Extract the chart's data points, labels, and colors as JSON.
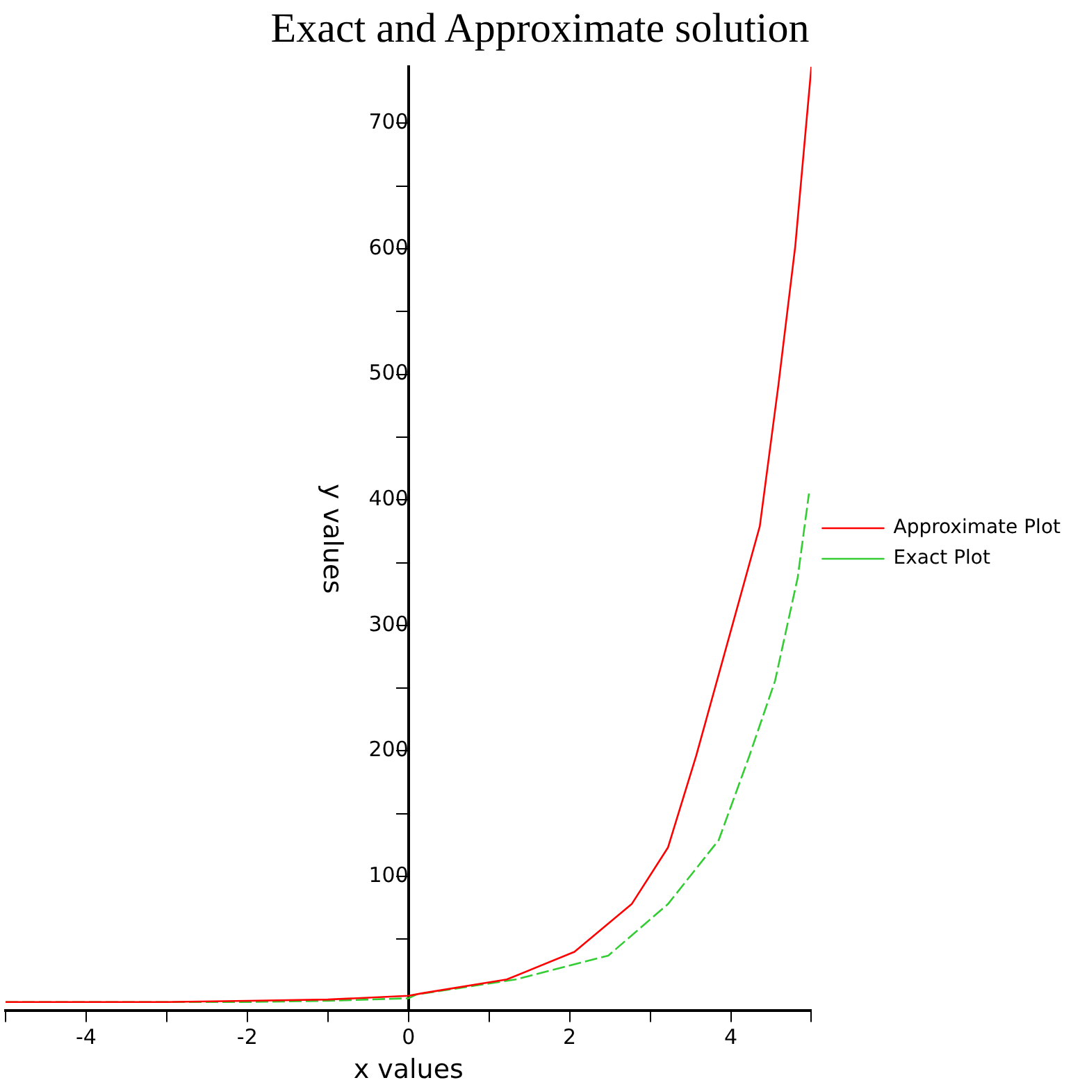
{
  "chart_data": {
    "type": "line",
    "title": "Exact and Approximate solution",
    "xlabel": "x values",
    "ylabel": "y values",
    "xlim": [
      -5,
      5
    ],
    "ylim": [
      -7,
      745
    ],
    "xticks": [
      {
        "value": -5,
        "label": null
      },
      -4,
      {
        "value": -3,
        "label": null
      },
      -2,
      {
        "value": -1,
        "label": null
      },
      0,
      {
        "value": 1,
        "label": null
      },
      2,
      {
        "value": 3,
        "label": null
      },
      4,
      {
        "value": 5,
        "label": null
      }
    ],
    "yticks": [
      {
        "value": 50,
        "label": null
      },
      100,
      {
        "value": 150,
        "label": null
      },
      200,
      {
        "value": 250,
        "label": null
      },
      300,
      {
        "value": 350,
        "label": null
      },
      400,
      {
        "value": 450,
        "label": null
      },
      500,
      {
        "value": 550,
        "label": null
      },
      600,
      {
        "value": 650,
        "label": null
      },
      700
    ],
    "grid": false,
    "legend": "right",
    "marker": "none",
    "series": [
      {
        "name": "Approximate Plot",
        "color": "#ff0000",
        "line_style": "solid",
        "x": [
          -5,
          -3,
          -2,
          -1,
          0,
          0.17,
          1.22,
          2.06,
          2.77,
          3.22,
          3.57,
          4.36,
          4.59,
          4.8,
          5
        ],
        "values": [
          0,
          0,
          1,
          2,
          5,
          7,
          18,
          40,
          78,
          123,
          196,
          379,
          491,
          602,
          745
        ]
      },
      {
        "name": "Exact Plot",
        "color": "#33cc33",
        "line_style": "dashed",
        "x": [
          -5,
          -3,
          -2,
          -1,
          0,
          0.1,
          1.33,
          2.48,
          3.22,
          3.85,
          4.23,
          4.55,
          4.83,
          4.97
        ],
        "values": [
          0,
          0,
          0,
          1,
          3,
          6,
          18,
          37,
          78,
          129,
          196,
          256,
          338,
          405
        ]
      }
    ]
  }
}
